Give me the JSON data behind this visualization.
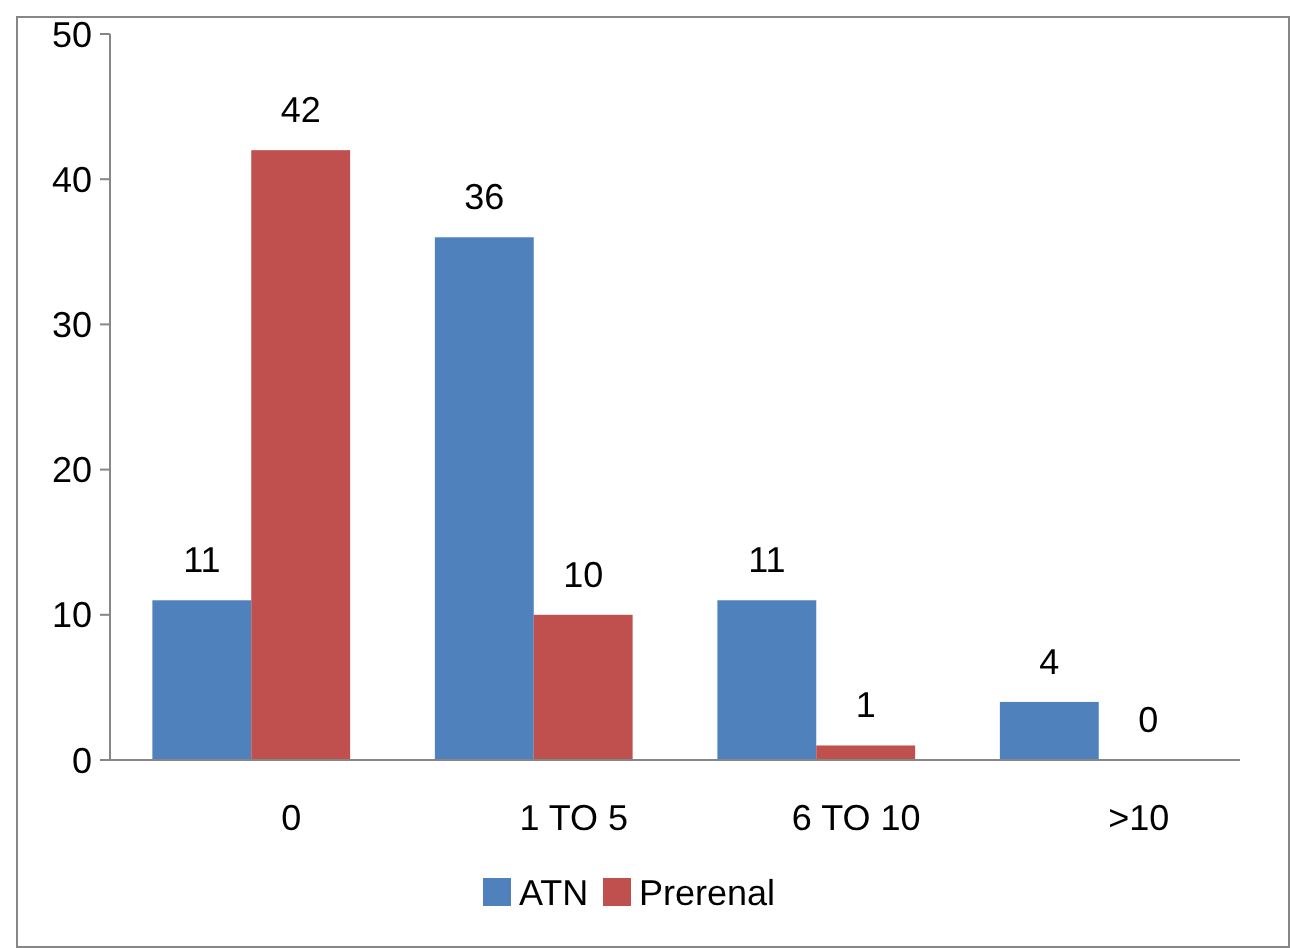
{
  "chart_data": {
    "type": "bar",
    "categories": [
      "0",
      "1 TO 5",
      "6 TO 10",
      ">10"
    ],
    "series": [
      {
        "name": "ATN",
        "color": "#4f81bd",
        "values": [
          11,
          36,
          11,
          4
        ]
      },
      {
        "name": "Prerenal",
        "color": "#c0504d",
        "values": [
          42,
          10,
          1,
          0
        ]
      }
    ],
    "ylim": [
      0,
      50
    ],
    "yticks": [
      0,
      10,
      20,
      30,
      40,
      50
    ],
    "grid": false,
    "legend": "bottom",
    "data_labels": true
  }
}
